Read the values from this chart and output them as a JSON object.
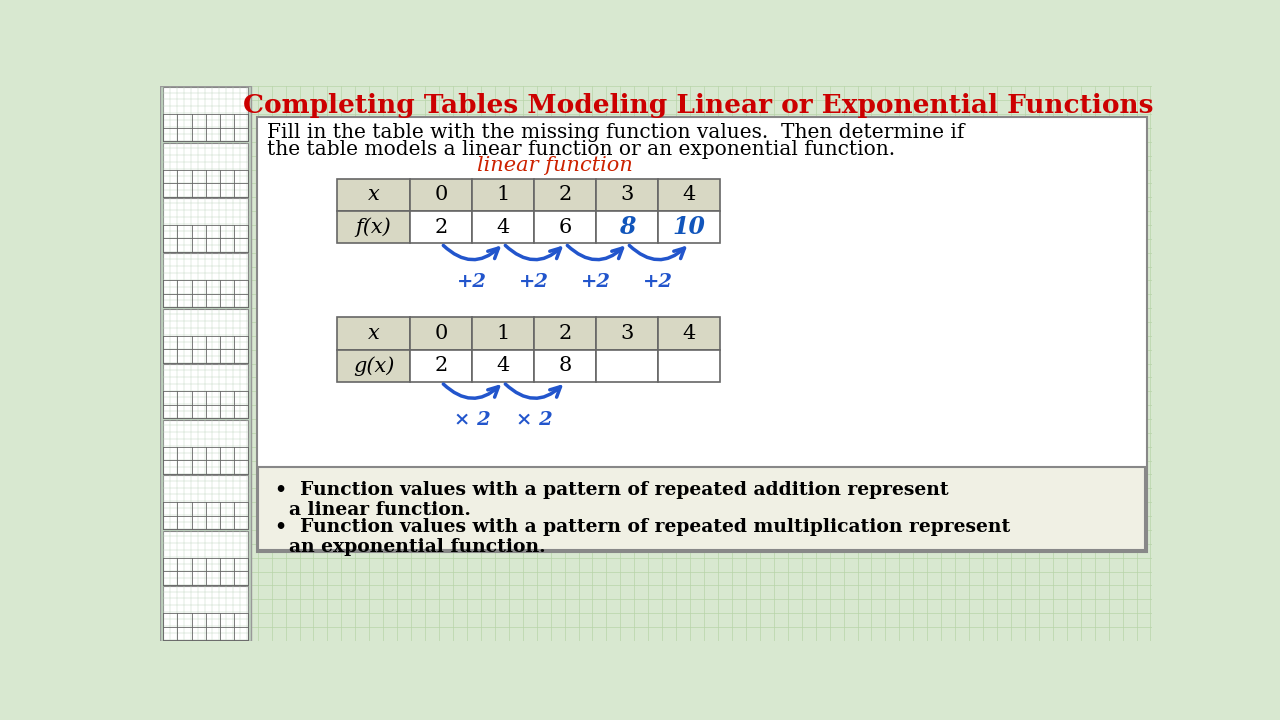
{
  "title": "Completing Tables Modeling Linear or Exponential Functions",
  "title_color": "#CC0000",
  "grid_bg": "#D8E8D0",
  "grid_line_color": "#B8D4A8",
  "sidebar_bg": "#C0D4C0",
  "main_bg": "#FFFFFF",
  "main_border": "#888888",
  "instructions_line1": "Fill in the table with the missing function values.  Then determine if",
  "instructions_line2": "the table models a linear function or an exponential function.",
  "annotation": "linear function",
  "table1_headers": [
    "x",
    "0",
    "1",
    "2",
    "3",
    "4"
  ],
  "table1_row_label": "f(x)",
  "table1_values": [
    "2",
    "4",
    "6",
    "8",
    "10"
  ],
  "table1_arrows": [
    "+2",
    "+2",
    "+2",
    "+2"
  ],
  "table1_filled_mask": [
    true,
    true,
    true,
    false,
    false
  ],
  "table2_headers": [
    "x",
    "0",
    "1",
    "2",
    "3",
    "4"
  ],
  "table2_row_label": "g(x)",
  "table2_values": [
    "2",
    "4",
    "8",
    "",
    ""
  ],
  "table2_arrows": [
    "× 2",
    "× 2"
  ],
  "table2_filled_mask": [
    true,
    true,
    true,
    false,
    false
  ],
  "cell_bg_header": "#D8D8C4",
  "cell_bg_label": "#D8D8C4",
  "cell_bg_data": "#FFFFFF",
  "cell_border": "#666666",
  "arrow_color": "#2255CC",
  "handwritten_color": "#1155BB",
  "annotation_color": "#CC2200",
  "bullet1_line1": "Function values with a pattern of repeated addition represent",
  "bullet1_line2": "a linear function.",
  "bullet2_line1": "Function values with a pattern of repeated multiplication represent",
  "bullet2_line2": "an exponential function.",
  "bottom_box_bg": "#F0F0E4",
  "bottom_box_border": "#888888"
}
